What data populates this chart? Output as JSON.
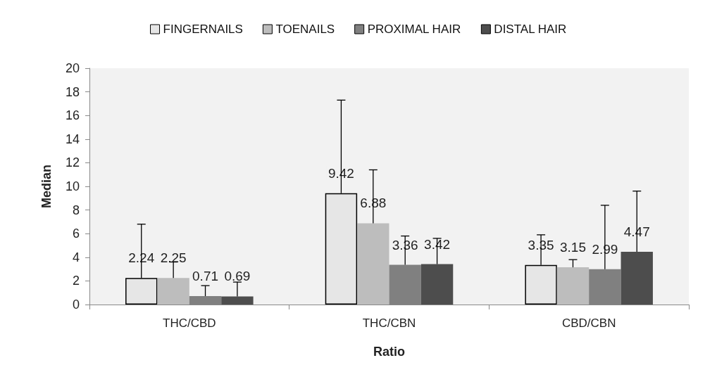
{
  "chart_data": {
    "type": "bar",
    "xlabel": "Ratio",
    "ylabel": "Median",
    "categories": [
      "THC/CBD",
      "THC/CBN",
      "CBD/CBN"
    ],
    "series": [
      {
        "name": "FINGERNAILS",
        "color": "#e6e6e6",
        "values": [
          2.24,
          9.42,
          3.35
        ],
        "errors": [
          [
            2.24,
            6.8
          ],
          [
            9.42,
            17.3
          ],
          [
            3.35,
            5.9
          ]
        ]
      },
      {
        "name": "TOENAILS",
        "color": "#bdbdbd",
        "values": [
          2.25,
          6.88,
          3.15
        ],
        "errors": [
          [
            2.25,
            3.6
          ],
          [
            6.88,
            11.4
          ],
          [
            3.15,
            3.8
          ]
        ]
      },
      {
        "name": "PROXIMAL HAIR",
        "color": "#808080",
        "values": [
          0.71,
          3.36,
          2.99
        ],
        "errors": [
          [
            0.71,
            1.6
          ],
          [
            3.36,
            5.8
          ],
          [
            2.99,
            8.4
          ]
        ]
      },
      {
        "name": "DISTAL HAIR",
        "color": "#4d4d4d",
        "values": [
          0.69,
          3.42,
          4.47
        ],
        "errors": [
          [
            0.69,
            1.9
          ],
          [
            3.42,
            5.6
          ],
          [
            4.47,
            9.6
          ]
        ]
      }
    ],
    "ylim": [
      0,
      20
    ],
    "yticks": [
      0,
      2,
      4,
      6,
      8,
      10,
      12,
      14,
      16,
      18,
      20
    ],
    "data_labels": true,
    "legend": "top",
    "grid": false
  }
}
